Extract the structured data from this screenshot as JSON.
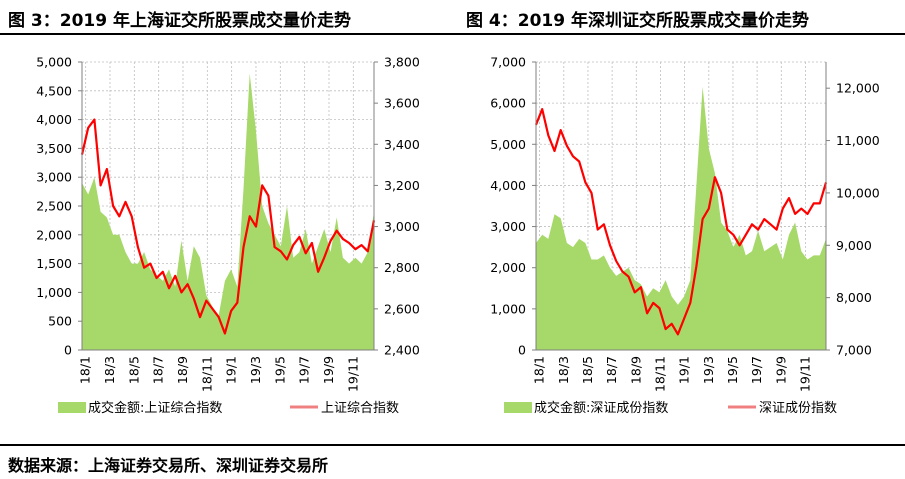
{
  "titles": {
    "left": "图 3：2019 年上海证交所股票成交量价走势",
    "right": "图 4：2019 年深圳证交所股票成交量价走势"
  },
  "source": "数据来源：上海证券交易所、深圳证券交易所",
  "colors": {
    "area": "#a6d96a",
    "line": "#ff0000",
    "line_legend": "#f08080",
    "grid": "#bfbfbf",
    "axis": "#808080"
  },
  "chart_data": [
    {
      "type": "area+line",
      "x_ticks": [
        "18/1",
        "18/3",
        "18/5",
        "18/7",
        "18/9",
        "18/11",
        "19/1",
        "19/3",
        "19/5",
        "19/7",
        "19/9",
        "19/11"
      ],
      "y_left": {
        "ticks": [
          "0",
          "500",
          "1,000",
          "1,500",
          "2,000",
          "2,500",
          "3,000",
          "3,500",
          "4,000",
          "4,500",
          "5,000"
        ],
        "range": [
          0,
          5000
        ]
      },
      "y_right": {
        "ticks": [
          "2,400",
          "2,600",
          "2,800",
          "3,000",
          "3,200",
          "3,400",
          "3,600",
          "3,800"
        ],
        "range": [
          2400,
          3800
        ]
      },
      "grid": true,
      "legend_placement": "bottom",
      "series": [
        {
          "name": "成交金额:上证综合指数",
          "kind": "area",
          "axis": "left",
          "points": [
            [
              0,
              2900
            ],
            [
              1,
              2700
            ],
            [
              2,
              3000
            ],
            [
              3,
              2400
            ],
            [
              4,
              2300
            ],
            [
              5,
              2000
            ],
            [
              6,
              2000
            ],
            [
              7,
              1700
            ],
            [
              8,
              1500
            ],
            [
              9,
              1500
            ],
            [
              10,
              1700
            ],
            [
              11,
              1400
            ],
            [
              12,
              1300
            ],
            [
              13,
              1200
            ],
            [
              14,
              1400
            ],
            [
              15,
              1100
            ],
            [
              16,
              1900
            ],
            [
              17,
              1200
            ],
            [
              18,
              1800
            ],
            [
              19,
              1600
            ],
            [
              20,
              950
            ],
            [
              21,
              750
            ],
            [
              22,
              600
            ],
            [
              23,
              1200
            ],
            [
              24,
              1400
            ],
            [
              25,
              1100
            ],
            [
              26,
              2800
            ],
            [
              27,
              4800
            ],
            [
              28,
              3800
            ],
            [
              29,
              2500
            ],
            [
              30,
              2200
            ],
            [
              31,
              2000
            ],
            [
              32,
              1800
            ],
            [
              33,
              2500
            ],
            [
              34,
              1600
            ],
            [
              35,
              1700
            ],
            [
              36,
              2100
            ],
            [
              37,
              1500
            ],
            [
              38,
              1800
            ],
            [
              39,
              2100
            ],
            [
              40,
              1700
            ],
            [
              41,
              2300
            ],
            [
              42,
              1600
            ],
            [
              43,
              1500
            ],
            [
              44,
              1600
            ],
            [
              45,
              1500
            ],
            [
              46,
              1700
            ],
            [
              47,
              2400
            ]
          ]
        },
        {
          "name": "上证综合指数",
          "kind": "line",
          "axis": "right",
          "points": [
            [
              0,
              3350
            ],
            [
              1,
              3480
            ],
            [
              2,
              3520
            ],
            [
              3,
              3200
            ],
            [
              4,
              3280
            ],
            [
              5,
              3100
            ],
            [
              6,
              3050
            ],
            [
              7,
              3120
            ],
            [
              8,
              3050
            ],
            [
              9,
              2900
            ],
            [
              10,
              2800
            ],
            [
              11,
              2820
            ],
            [
              12,
              2750
            ],
            [
              13,
              2780
            ],
            [
              14,
              2700
            ],
            [
              15,
              2760
            ],
            [
              16,
              2680
            ],
            [
              17,
              2720
            ],
            [
              18,
              2650
            ],
            [
              19,
              2560
            ],
            [
              20,
              2640
            ],
            [
              21,
              2600
            ],
            [
              22,
              2560
            ],
            [
              23,
              2480
            ],
            [
              24,
              2590
            ],
            [
              25,
              2630
            ],
            [
              26,
              2900
            ],
            [
              27,
              3050
            ],
            [
              28,
              3000
            ],
            [
              29,
              3200
            ],
            [
              30,
              3150
            ],
            [
              31,
              2900
            ],
            [
              32,
              2880
            ],
            [
              33,
              2840
            ],
            [
              34,
              2910
            ],
            [
              35,
              2950
            ],
            [
              36,
              2870
            ],
            [
              37,
              2920
            ],
            [
              38,
              2780
            ],
            [
              39,
              2850
            ],
            [
              40,
              2930
            ],
            [
              41,
              2980
            ],
            [
              42,
              2940
            ],
            [
              43,
              2920
            ],
            [
              44,
              2890
            ],
            [
              45,
              2910
            ],
            [
              46,
              2880
            ],
            [
              47,
              3030
            ]
          ]
        }
      ]
    },
    {
      "type": "area+line",
      "x_ticks": [
        "18/1",
        "18/3",
        "18/5",
        "18/7",
        "18/9",
        "18/11",
        "19/1",
        "19/3",
        "19/5",
        "19/7",
        "19/9",
        "19/11"
      ],
      "y_left": {
        "ticks": [
          "0",
          "1,000",
          "2,000",
          "3,000",
          "4,000",
          "5,000",
          "6,000",
          "7,000"
        ],
        "range": [
          0,
          7000
        ]
      },
      "y_right": {
        "ticks": [
          "7,000",
          "8,000",
          "9,000",
          "10,000",
          "11,000",
          "12,000"
        ],
        "range": [
          7000,
          12500
        ]
      },
      "grid": true,
      "legend_placement": "bottom",
      "series": [
        {
          "name": "成交金额:深证成份指数",
          "kind": "area",
          "axis": "left",
          "points": [
            [
              0,
              2600
            ],
            [
              1,
              2800
            ],
            [
              2,
              2700
            ],
            [
              3,
              3300
            ],
            [
              4,
              3200
            ],
            [
              5,
              2600
            ],
            [
              6,
              2500
            ],
            [
              7,
              2700
            ],
            [
              8,
              2600
            ],
            [
              9,
              2200
            ],
            [
              10,
              2200
            ],
            [
              11,
              2300
            ],
            [
              12,
              2000
            ],
            [
              13,
              1800
            ],
            [
              14,
              1900
            ],
            [
              15,
              2000
            ],
            [
              16,
              1700
            ],
            [
              17,
              1600
            ],
            [
              18,
              1300
            ],
            [
              19,
              1500
            ],
            [
              20,
              1400
            ],
            [
              21,
              1700
            ],
            [
              22,
              1300
            ],
            [
              23,
              1100
            ],
            [
              24,
              1300
            ],
            [
              25,
              1700
            ],
            [
              26,
              4000
            ],
            [
              27,
              6400
            ],
            [
              28,
              4900
            ],
            [
              29,
              4300
            ],
            [
              30,
              3100
            ],
            [
              31,
              2900
            ],
            [
              32,
              2500
            ],
            [
              33,
              2800
            ],
            [
              34,
              2300
            ],
            [
              35,
              2400
            ],
            [
              36,
              2900
            ],
            [
              37,
              2400
            ],
            [
              38,
              2500
            ],
            [
              39,
              2600
            ],
            [
              40,
              2200
            ],
            [
              41,
              2800
            ],
            [
              42,
              3100
            ],
            [
              43,
              2400
            ],
            [
              44,
              2200
            ],
            [
              45,
              2300
            ],
            [
              46,
              2300
            ],
            [
              47,
              2700
            ]
          ]
        },
        {
          "name": "深证成份指数",
          "kind": "line",
          "axis": "right",
          "points": [
            [
              0,
              11300
            ],
            [
              1,
              11600
            ],
            [
              2,
              11100
            ],
            [
              3,
              10800
            ],
            [
              4,
              11200
            ],
            [
              5,
              10900
            ],
            [
              6,
              10700
            ],
            [
              7,
              10600
            ],
            [
              8,
              10200
            ],
            [
              9,
              10000
            ],
            [
              10,
              9300
            ],
            [
              11,
              9400
            ],
            [
              12,
              9000
            ],
            [
              13,
              8700
            ],
            [
              14,
              8500
            ],
            [
              15,
              8400
            ],
            [
              16,
              8100
            ],
            [
              17,
              8200
            ],
            [
              18,
              7700
            ],
            [
              19,
              7900
            ],
            [
              20,
              7800
            ],
            [
              21,
              7400
            ],
            [
              22,
              7500
            ],
            [
              23,
              7300
            ],
            [
              24,
              7600
            ],
            [
              25,
              7900
            ],
            [
              26,
              8600
            ],
            [
              27,
              9500
            ],
            [
              28,
              9700
            ],
            [
              29,
              10300
            ],
            [
              30,
              10000
            ],
            [
              31,
              9300
            ],
            [
              32,
              9200
            ],
            [
              33,
              9000
            ],
            [
              34,
              9200
            ],
            [
              35,
              9400
            ],
            [
              36,
              9300
            ],
            [
              37,
              9500
            ],
            [
              38,
              9400
            ],
            [
              39,
              9300
            ],
            [
              40,
              9700
            ],
            [
              41,
              9900
            ],
            [
              42,
              9600
            ],
            [
              43,
              9700
            ],
            [
              44,
              9600
            ],
            [
              45,
              9800
            ],
            [
              46,
              9800
            ],
            [
              47,
              10200
            ]
          ]
        }
      ]
    }
  ]
}
